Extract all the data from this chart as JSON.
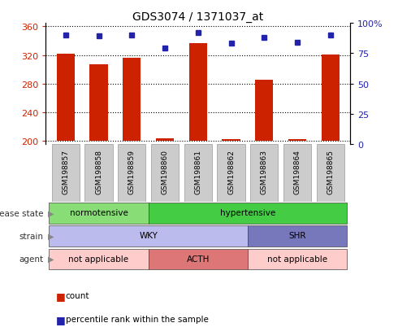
{
  "title": "GDS3074 / 1371037_at",
  "samples": [
    "GSM198857",
    "GSM198858",
    "GSM198859",
    "GSM198860",
    "GSM198861",
    "GSM198862",
    "GSM198863",
    "GSM198864",
    "GSM198865"
  ],
  "count_values": [
    322,
    307,
    316,
    204,
    337,
    202,
    285,
    202,
    321
  ],
  "percentile_values": [
    90,
    89,
    90,
    79,
    92,
    83,
    88,
    84,
    90
  ],
  "ylim_left": [
    195,
    365
  ],
  "ylim_right": [
    0,
    100
  ],
  "yticks_left": [
    200,
    240,
    280,
    320,
    360
  ],
  "yticks_right": [
    0,
    25,
    50,
    75,
    100
  ],
  "bar_color": "#cc2200",
  "dot_color": "#2222aa",
  "bar_bottom": 200,
  "disease_state_segments": [
    {
      "label": "normotensive",
      "start": 0,
      "end": 3,
      "color": "#88dd77"
    },
    {
      "label": "hypertensive",
      "start": 3,
      "end": 9,
      "color": "#44cc44"
    }
  ],
  "strain_segments": [
    {
      "label": "WKY",
      "start": 0,
      "end": 6,
      "color": "#bbbbee"
    },
    {
      "label": "SHR",
      "start": 6,
      "end": 9,
      "color": "#7777bb"
    }
  ],
  "agent_segments": [
    {
      "label": "not applicable",
      "start": 0,
      "end": 3,
      "color": "#ffcccc"
    },
    {
      "label": "ACTH",
      "start": 3,
      "end": 6,
      "color": "#dd7777"
    },
    {
      "label": "not applicable",
      "start": 6,
      "end": 9,
      "color": "#ffcccc"
    }
  ],
  "row_labels": [
    "disease state",
    "strain",
    "agent"
  ],
  "tick_label_color_left": "#cc2200",
  "tick_label_color_right": "#2222aa",
  "legend_items": [
    {
      "color": "#cc2200",
      "label": "count"
    },
    {
      "color": "#2222aa",
      "label": "percentile rank within the sample"
    }
  ]
}
